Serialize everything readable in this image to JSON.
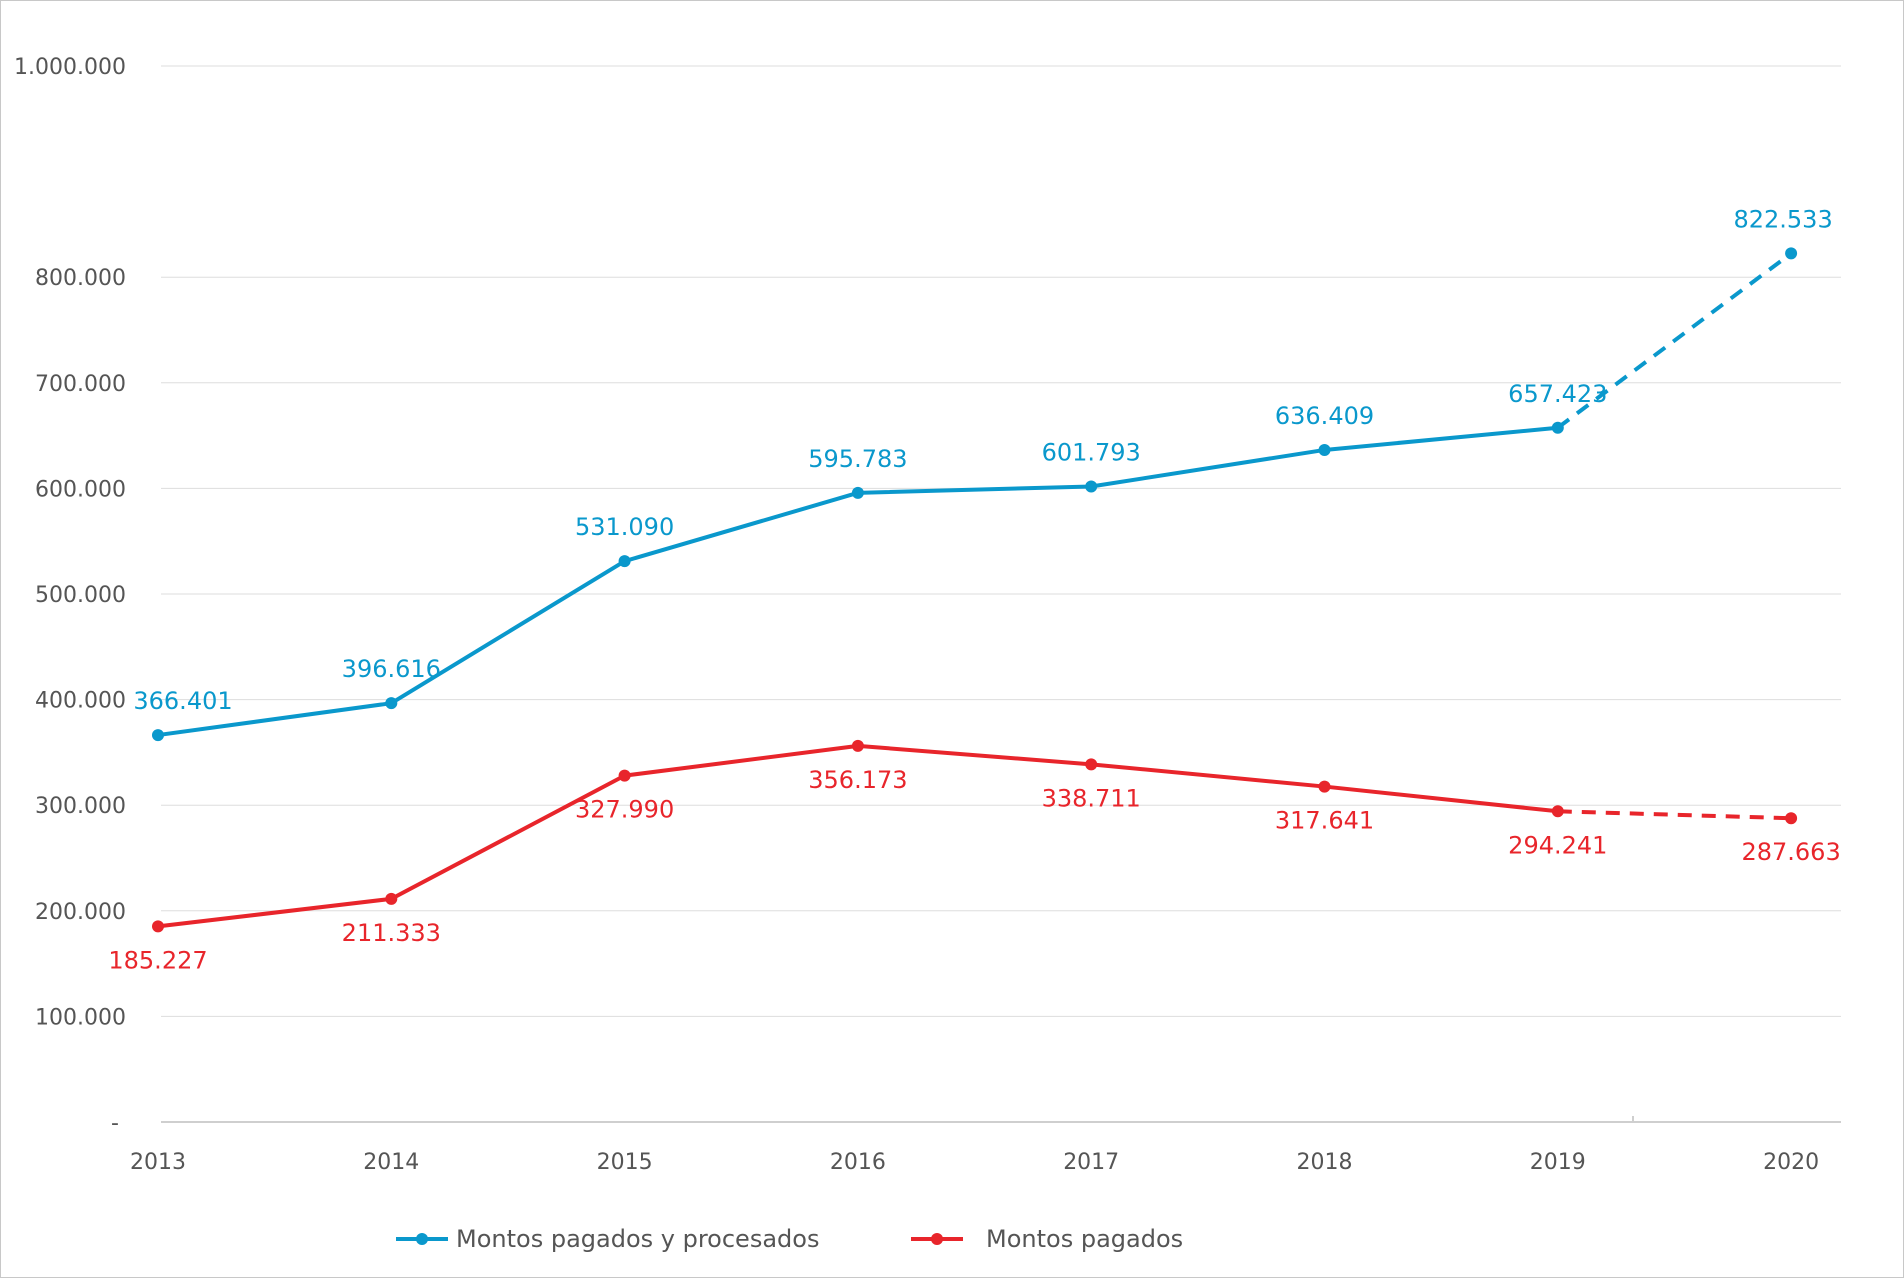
{
  "chart_data": {
    "type": "line",
    "categories": [
      "2013",
      "2014",
      "2015",
      "2016",
      "2017",
      "2018",
      "2019",
      "2020"
    ],
    "y_ticks": [
      {
        "value": 0,
        "label": "-"
      },
      {
        "value": 100000,
        "label": "100.000"
      },
      {
        "value": 200000,
        "label": "200.000"
      },
      {
        "value": 300000,
        "label": "300.000"
      },
      {
        "value": 400000,
        "label": "400.000"
      },
      {
        "value": 500000,
        "label": "500.000"
      },
      {
        "value": 600000,
        "label": "600.000"
      },
      {
        "value": 700000,
        "label": "700.000"
      },
      {
        "value": 800000,
        "label": "800.000"
      },
      {
        "value": 1000000,
        "label": "1.000.000"
      }
    ],
    "ylim": [
      0,
      1000000
    ],
    "grid": true,
    "legend_position": "bottom",
    "series": [
      {
        "name": "Montos pagados y procesados",
        "color": "#0a98cc",
        "values": [
          366401,
          396616,
          531090,
          595783,
          601793,
          636409,
          657423,
          822533
        ],
        "labels": [
          "366.401",
          "396.616",
          "531.090",
          "595.783",
          "601.793",
          "636.409",
          "657.423",
          "822.533"
        ],
        "label_position": "above",
        "dashed_from_index": 6
      },
      {
        "name": "Montos pagados",
        "color": "#e8252b",
        "values": [
          185227,
          211333,
          327990,
          356173,
          338711,
          317641,
          294241,
          287663
        ],
        "labels": [
          "185.227",
          "211.333",
          "327.990",
          "356.173",
          "338.711",
          "317.641",
          "294.241",
          "287.663"
        ],
        "label_position": "below",
        "dashed_from_index": 6
      }
    ]
  }
}
